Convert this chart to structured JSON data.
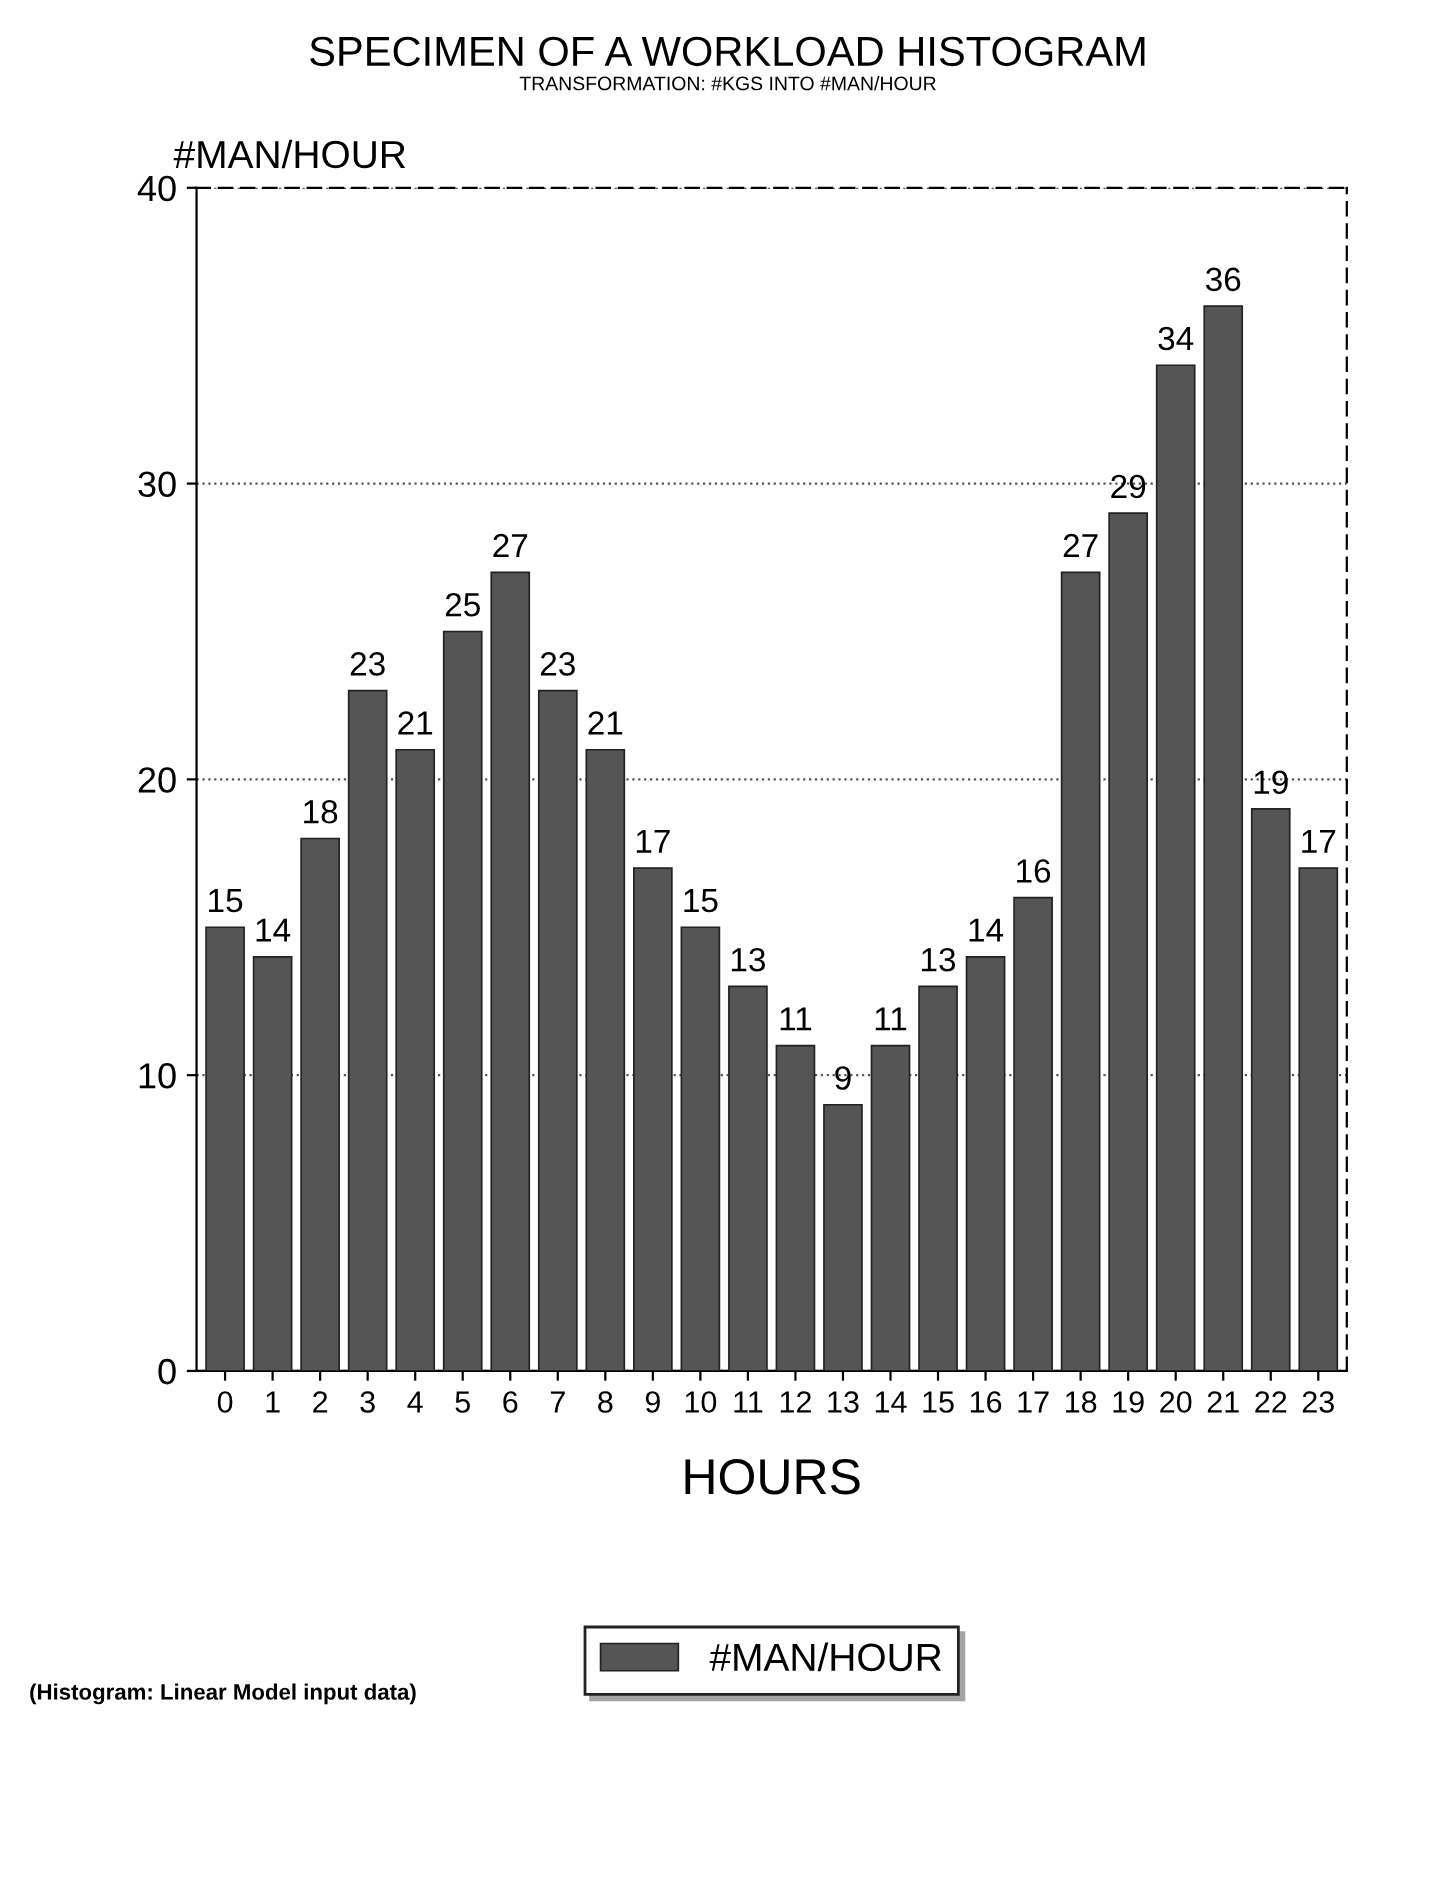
{
  "chart_data": {
    "type": "bar",
    "title": "SPECIMEN OF A WORKLOAD HISTOGRAM",
    "subtitle": "TRANSFORMATION: #KGS INTO #MAN/HOUR",
    "xlabel": "HOURS",
    "ylabel": "#MAN/HOUR",
    "categories": [
      "0",
      "1",
      "2",
      "3",
      "4",
      "5",
      "6",
      "7",
      "8",
      "9",
      "10",
      "11",
      "12",
      "13",
      "14",
      "15",
      "16",
      "17",
      "18",
      "19",
      "20",
      "21",
      "22",
      "23"
    ],
    "series": [
      {
        "name": "#MAN/HOUR",
        "color": "#555555",
        "values": [
          15,
          14,
          18,
          23,
          21,
          25,
          27,
          23,
          21,
          17,
          15,
          13,
          11,
          9,
          11,
          13,
          14,
          16,
          27,
          29,
          34,
          36,
          19,
          17
        ]
      }
    ],
    "ylim": [
      0,
      40
    ],
    "yticks": [
      0,
      10,
      20,
      30,
      40
    ],
    "grid": "y",
    "legend": "bottom",
    "data_labels": true,
    "annotations": [
      "(Histogram: Linear Model input data)"
    ]
  }
}
